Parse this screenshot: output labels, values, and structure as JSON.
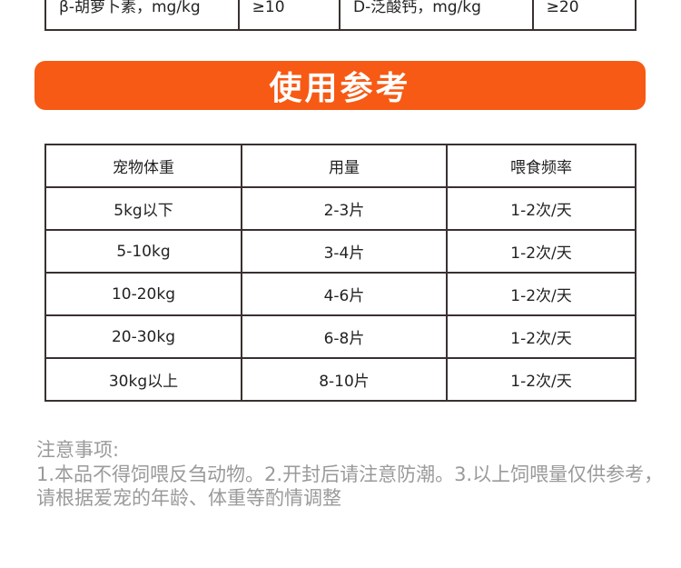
{
  "top_table": {
    "cells": [
      "β-胡萝卜素，mg/kg",
      "≥10",
      "D-泛酸钙，mg/kg",
      "≥20"
    ]
  },
  "banner": {
    "title": "使用参考",
    "color": "#f75a14"
  },
  "usage_table": {
    "headers": [
      "宠物体重",
      "用量",
      "喂食频率"
    ],
    "rows": [
      [
        "5kg以下",
        "2-3片",
        "1-2次/天"
      ],
      [
        "5-10kg",
        "3-4片",
        "1-2次/天"
      ],
      [
        "10-20kg",
        "4-6片",
        "1-2次/天"
      ],
      [
        "20-30kg",
        "6-8片",
        "1-2次/天"
      ],
      [
        "30kg以上",
        "8-10片",
        "1-2次/天"
      ]
    ]
  },
  "notes": {
    "title": "注意事项:",
    "text": "1.本品不得饲喂反刍动物。2.开封后请注意防潮。3.以上饲喂量仅供参考，请根据爱宠的年龄、体重等酌情调整"
  }
}
